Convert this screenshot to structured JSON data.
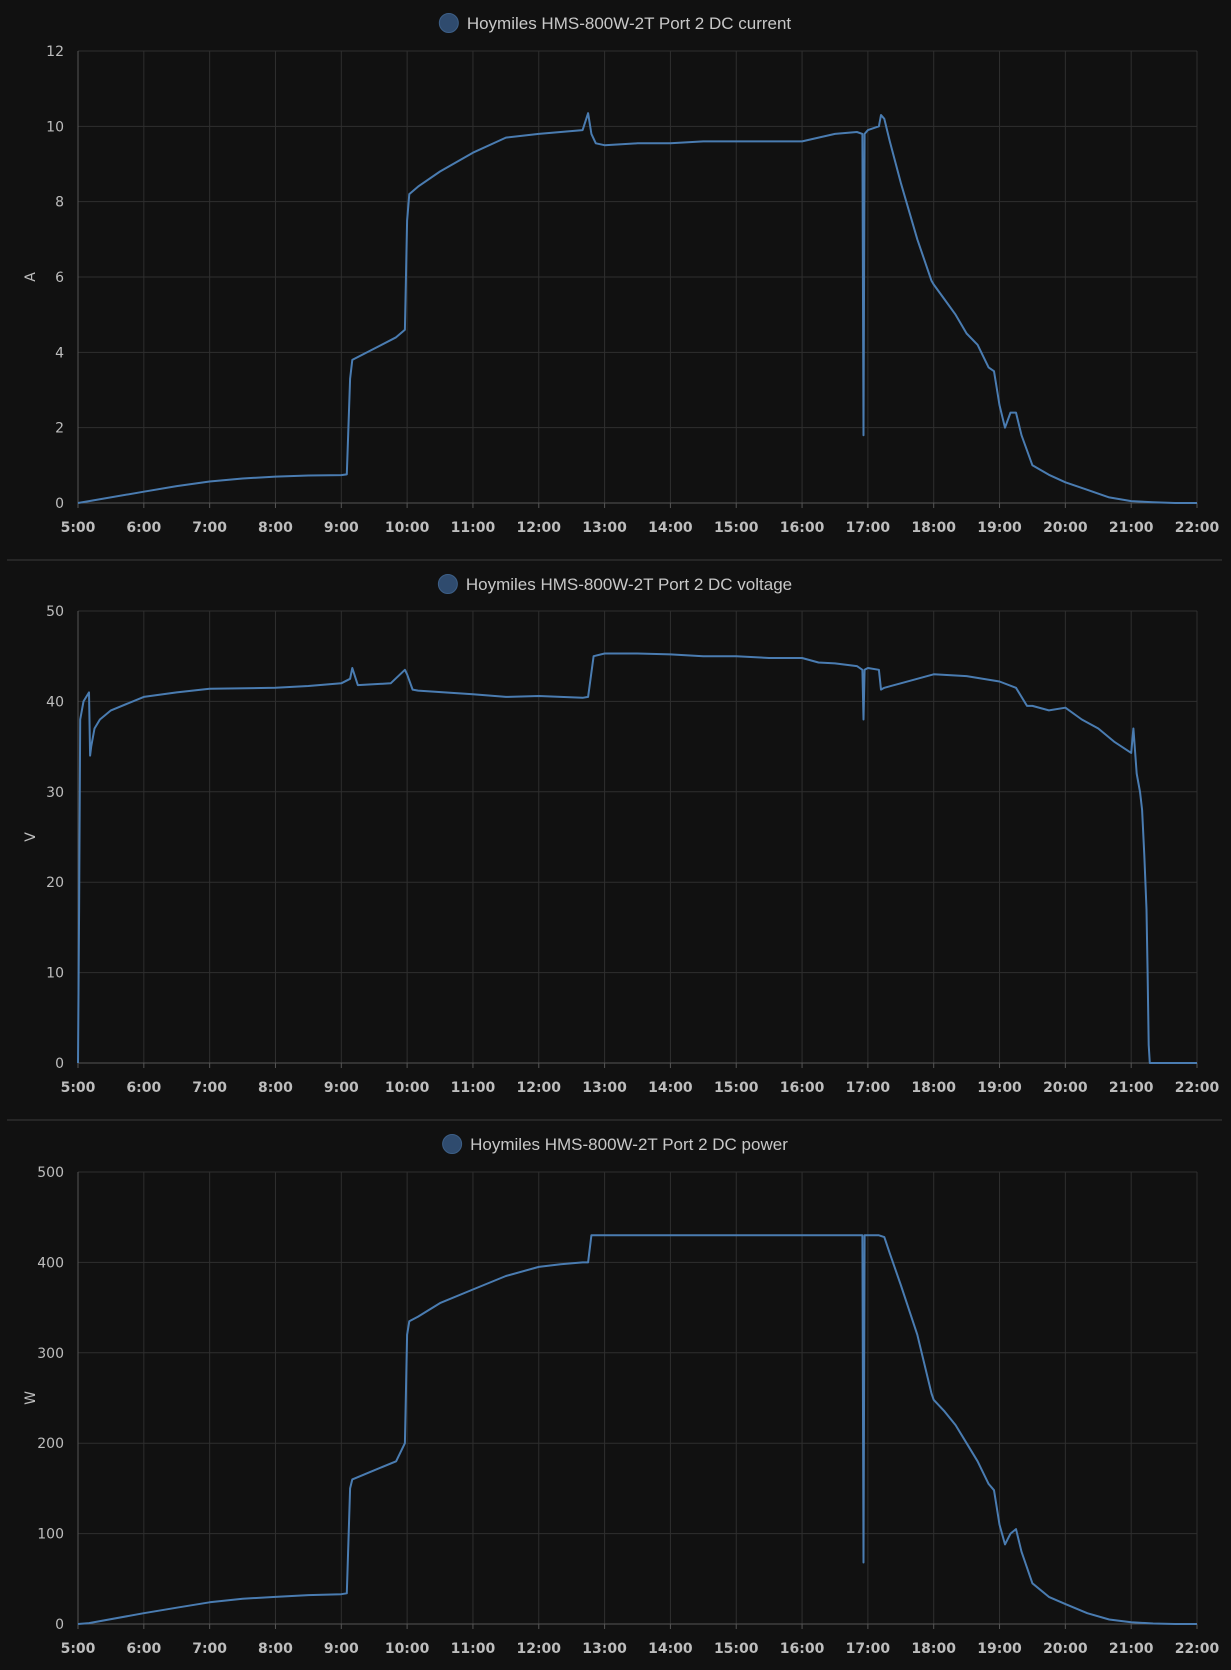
{
  "colors": {
    "background": "#111111",
    "series": "#4a7cb1",
    "legend_marker": "#2f4b6e",
    "grid": "#2f2f2f",
    "text": "#bdbdbd"
  },
  "chart_data": [
    {
      "type": "line",
      "legend": "Hoymiles HMS-800W-2T Port 2 DC current",
      "ylabel": "A",
      "ylim": [
        0,
        12
      ],
      "yticks": [
        0,
        2,
        4,
        6,
        8,
        10,
        12
      ],
      "xlim": [
        5,
        22
      ],
      "xticks": [
        "5:00",
        "6:00",
        "7:00",
        "8:00",
        "9:00",
        "10:00",
        "11:00",
        "12:00",
        "13:00",
        "14:00",
        "15:00",
        "16:00",
        "17:00",
        "18:00",
        "19:00",
        "20:00",
        "21:00",
        "22:00"
      ],
      "grid": true,
      "legend_position": "top-center",
      "series": [
        {
          "x": [
            "5:00",
            "5:10",
            "6:00",
            "6:30",
            "7:00",
            "7:30",
            "8:00",
            "8:30",
            "9:00",
            "9:05",
            "9:08",
            "9:10",
            "9:30",
            "9:50",
            "9:58",
            "10:00",
            "10:02",
            "10:10",
            "10:30",
            "11:00",
            "11:30",
            "12:00",
            "12:20",
            "12:40",
            "12:45",
            "12:48",
            "12:52",
            "13:00",
            "13:30",
            "14:00",
            "14:30",
            "15:00",
            "15:30",
            "16:00",
            "16:15",
            "16:30",
            "16:50",
            "16:55",
            "16:56",
            "16:57",
            "17:00",
            "17:10",
            "17:12",
            "17:15",
            "17:20",
            "17:30",
            "17:45",
            "17:58",
            "18:00",
            "18:10",
            "18:20",
            "18:30",
            "18:40",
            "18:50",
            "18:55",
            "19:00",
            "19:05",
            "19:10",
            "19:15",
            "19:20",
            "19:30",
            "19:45",
            "20:00",
            "20:20",
            "20:40",
            "21:00",
            "21:20",
            "21:40",
            "22:00"
          ],
          "y": [
            0,
            0.05,
            0.3,
            0.45,
            0.57,
            0.65,
            0.7,
            0.73,
            0.74,
            0.76,
            3.3,
            3.8,
            4.1,
            4.4,
            4.6,
            7.5,
            8.2,
            8.4,
            8.8,
            9.3,
            9.7,
            9.8,
            9.85,
            9.9,
            10.35,
            9.8,
            9.55,
            9.5,
            9.55,
            9.55,
            9.6,
            9.6,
            9.6,
            9.6,
            9.7,
            9.8,
            9.85,
            9.8,
            1.8,
            9.8,
            9.9,
            10.0,
            10.3,
            10.2,
            9.6,
            8.5,
            7.0,
            5.9,
            5.8,
            5.4,
            5.0,
            4.5,
            4.2,
            3.6,
            3.5,
            2.6,
            2.0,
            2.4,
            2.4,
            1.8,
            1.0,
            0.75,
            0.55,
            0.35,
            0.15,
            0.05,
            0.02,
            0,
            0
          ]
        }
      ]
    },
    {
      "type": "line",
      "legend": "Hoymiles HMS-800W-2T Port 2 DC voltage",
      "ylabel": "V",
      "ylim": [
        0,
        50
      ],
      "yticks": [
        0,
        10,
        20,
        30,
        40,
        50
      ],
      "xlim": [
        5,
        22
      ],
      "xticks": [
        "5:00",
        "6:00",
        "7:00",
        "8:00",
        "9:00",
        "10:00",
        "11:00",
        "12:00",
        "13:00",
        "14:00",
        "15:00",
        "16:00",
        "17:00",
        "18:00",
        "19:00",
        "20:00",
        "21:00",
        "22:00"
      ],
      "grid": true,
      "legend_position": "top-center",
      "series": [
        {
          "x": [
            "5:00",
            "5:01",
            "5:02",
            "5:05",
            "5:10",
            "5:11",
            "5:12",
            "5:15",
            "5:20",
            "5:30",
            "6:00",
            "6:30",
            "7:00",
            "8:00",
            "8:30",
            "9:00",
            "9:08",
            "9:10",
            "9:15",
            "9:45",
            "9:58",
            "10:00",
            "10:05",
            "10:10",
            "11:00",
            "11:30",
            "12:00",
            "12:40",
            "12:45",
            "12:50",
            "13:00",
            "13:30",
            "14:00",
            "14:30",
            "15:00",
            "15:30",
            "16:00",
            "16:15",
            "16:30",
            "16:50",
            "16:55",
            "16:56",
            "16:57",
            "17:00",
            "17:10",
            "17:12",
            "17:15",
            "17:30",
            "18:00",
            "18:30",
            "19:00",
            "19:15",
            "19:25",
            "19:30",
            "19:45",
            "20:00",
            "20:15",
            "20:30",
            "20:45",
            "21:00",
            "21:02",
            "21:05",
            "21:08",
            "21:10",
            "21:12",
            "21:14",
            "21:15",
            "21:16",
            "21:17",
            "22:00"
          ],
          "y": [
            0,
            17,
            38,
            40,
            41,
            34,
            35,
            37,
            38,
            39,
            40.5,
            41,
            41.4,
            41.5,
            41.7,
            42.0,
            42.5,
            43.7,
            41.8,
            42.0,
            43.5,
            43.0,
            41.3,
            41.2,
            40.8,
            40.5,
            40.6,
            40.4,
            40.5,
            45.0,
            45.3,
            45.3,
            45.2,
            45.0,
            45.0,
            44.8,
            44.8,
            44.3,
            44.2,
            43.9,
            43.5,
            38.0,
            43.5,
            43.7,
            43.5,
            41.3,
            41.5,
            42.0,
            43.0,
            42.8,
            42.2,
            41.5,
            39.5,
            39.5,
            39.0,
            39.3,
            38.0,
            37.0,
            35.5,
            34.3,
            37.0,
            32.0,
            30.0,
            28.0,
            23.0,
            17.0,
            10.0,
            2.0,
            0,
            0
          ]
        }
      ]
    },
    {
      "type": "line",
      "legend": "Hoymiles HMS-800W-2T Port 2 DC power",
      "ylabel": "W",
      "ylim": [
        0,
        500
      ],
      "yticks": [
        0,
        100,
        200,
        300,
        400,
        500
      ],
      "xlim": [
        5,
        22
      ],
      "xticks": [
        "5:00",
        "6:00",
        "7:00",
        "8:00",
        "9:00",
        "10:00",
        "11:00",
        "12:00",
        "13:00",
        "14:00",
        "15:00",
        "16:00",
        "17:00",
        "18:00",
        "19:00",
        "20:00",
        "21:00",
        "22:00"
      ],
      "grid": true,
      "legend_position": "top-center",
      "series": [
        {
          "x": [
            "5:00",
            "5:10",
            "6:00",
            "6:30",
            "7:00",
            "7:30",
            "8:00",
            "8:30",
            "9:00",
            "9:05",
            "9:08",
            "9:10",
            "9:30",
            "9:50",
            "9:58",
            "10:00",
            "10:02",
            "10:10",
            "10:30",
            "11:00",
            "11:30",
            "12:00",
            "12:20",
            "12:40",
            "12:45",
            "12:48",
            "13:00",
            "14:00",
            "15:00",
            "16:00",
            "16:50",
            "16:55",
            "16:56",
            "16:57",
            "17:00",
            "17:10",
            "17:15",
            "17:20",
            "17:30",
            "17:45",
            "17:58",
            "18:00",
            "18:10",
            "18:20",
            "18:30",
            "18:40",
            "18:50",
            "18:55",
            "19:00",
            "19:05",
            "19:10",
            "19:15",
            "19:20",
            "19:30",
            "19:45",
            "20:00",
            "20:20",
            "20:40",
            "21:00",
            "21:20",
            "21:40",
            "22:00"
          ],
          "y": [
            0,
            1,
            12,
            18,
            24,
            28,
            30,
            32,
            33,
            34,
            150,
            160,
            170,
            180,
            200,
            320,
            335,
            340,
            355,
            370,
            385,
            395,
            398,
            400,
            400,
            430,
            430,
            430,
            430,
            430,
            430,
            430,
            68,
            430,
            430,
            430,
            428,
            410,
            375,
            320,
            255,
            248,
            235,
            220,
            200,
            180,
            155,
            148,
            110,
            88,
            100,
            105,
            80,
            45,
            30,
            22,
            12,
            5,
            2,
            0.5,
            0,
            0
          ]
        }
      ]
    }
  ]
}
